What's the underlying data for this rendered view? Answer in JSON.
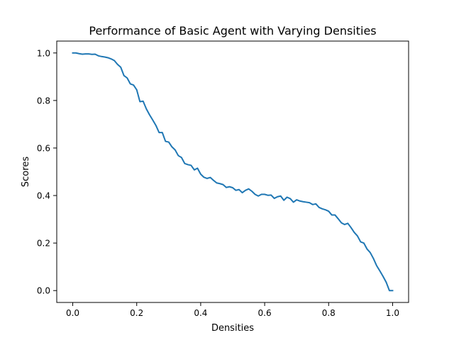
{
  "chart_data": {
    "type": "line",
    "title": "Performance of Basic Agent with Varying Densities",
    "xlabel": "Densities",
    "ylabel": "Scores",
    "xlim": [
      -0.05,
      1.05
    ],
    "ylim": [
      -0.05,
      1.05
    ],
    "xticks": [
      0.0,
      0.2,
      0.4,
      0.6,
      0.8,
      1.0
    ],
    "xtick_labels": [
      "0.0",
      "0.2",
      "0.4",
      "0.6",
      "0.8",
      "1.0"
    ],
    "yticks": [
      0.0,
      0.2,
      0.4,
      0.6,
      0.8,
      1.0
    ],
    "ytick_labels": [
      "0.0",
      "0.2",
      "0.4",
      "0.6",
      "0.8",
      "1.0"
    ],
    "grid": false,
    "legend": null,
    "series": [
      {
        "color": "#1f77b4",
        "x": [
          0.0,
          0.01,
          0.02,
          0.03,
          0.04,
          0.05,
          0.06,
          0.07,
          0.08,
          0.09,
          0.1,
          0.11,
          0.12,
          0.13,
          0.14,
          0.15,
          0.16,
          0.17,
          0.18,
          0.19,
          0.2,
          0.21,
          0.22,
          0.23,
          0.24,
          0.25,
          0.26,
          0.27,
          0.28,
          0.29,
          0.3,
          0.31,
          0.32,
          0.33,
          0.34,
          0.35,
          0.36,
          0.37,
          0.38,
          0.39,
          0.4,
          0.41,
          0.42,
          0.43,
          0.44,
          0.45,
          0.46,
          0.47,
          0.48,
          0.49,
          0.5,
          0.51,
          0.52,
          0.53,
          0.54,
          0.55,
          0.56,
          0.57,
          0.58,
          0.59,
          0.6,
          0.61,
          0.62,
          0.63,
          0.64,
          0.65,
          0.66,
          0.67,
          0.68,
          0.69,
          0.7,
          0.71,
          0.72,
          0.73,
          0.74,
          0.75,
          0.76,
          0.77,
          0.78,
          0.79,
          0.8,
          0.81,
          0.82,
          0.83,
          0.84,
          0.85,
          0.86,
          0.87,
          0.88,
          0.89,
          0.9,
          0.91,
          0.92,
          0.93,
          0.94,
          0.95,
          0.96,
          0.97,
          0.98,
          0.99,
          1.0
        ],
        "y": [
          1.0,
          1.0,
          0.997,
          0.995,
          0.996,
          0.996,
          0.994,
          0.995,
          0.988,
          0.985,
          0.983,
          0.98,
          0.975,
          0.968,
          0.952,
          0.94,
          0.905,
          0.895,
          0.87,
          0.865,
          0.845,
          0.795,
          0.797,
          0.765,
          0.74,
          0.718,
          0.695,
          0.665,
          0.665,
          0.628,
          0.625,
          0.605,
          0.592,
          0.568,
          0.56,
          0.535,
          0.53,
          0.527,
          0.508,
          0.515,
          0.49,
          0.477,
          0.472,
          0.476,
          0.464,
          0.453,
          0.45,
          0.446,
          0.434,
          0.437,
          0.433,
          0.422,
          0.425,
          0.412,
          0.422,
          0.428,
          0.418,
          0.405,
          0.398,
          0.405,
          0.405,
          0.401,
          0.402,
          0.388,
          0.395,
          0.398,
          0.38,
          0.393,
          0.387,
          0.372,
          0.382,
          0.377,
          0.374,
          0.372,
          0.37,
          0.362,
          0.365,
          0.35,
          0.344,
          0.34,
          0.334,
          0.318,
          0.318,
          0.302,
          0.285,
          0.278,
          0.283,
          0.265,
          0.245,
          0.23,
          0.205,
          0.2,
          0.175,
          0.16,
          0.135,
          0.105,
          0.083,
          0.06,
          0.035,
          0.0,
          0.0
        ]
      }
    ]
  }
}
